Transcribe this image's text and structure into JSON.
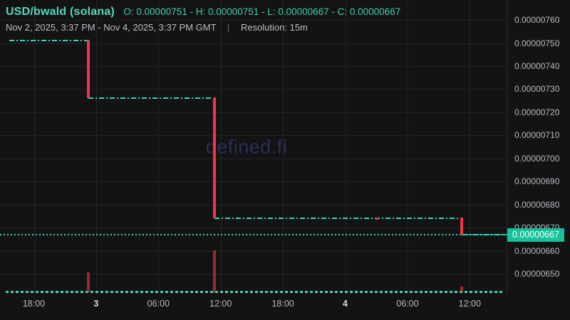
{
  "header": {
    "symbol": "USD/bwald (solana)",
    "ohlc": "O: 0.00000751 - H: 0.00000751 - L: 0.00000667 - C: 0.00000667",
    "date_range": "Nov 2, 2025, 3:37 PM - Nov 4, 2025, 3:37 PM GMT",
    "separator": "|",
    "resolution": "Resolution: 15m"
  },
  "watermark": "defined.fi",
  "current_price_label": "0.00000667",
  "colors": {
    "background": "#131314",
    "accent_teal": "#2dd9b7",
    "candle_red": "#f23645",
    "price_label_bg": "#16c19c",
    "title_teal": "#55d6bb",
    "grid": "#232327",
    "axis_text": "#b8bac0",
    "watermark": "#2b2e55"
  },
  "chart_data": {
    "type": "line",
    "style": "step-close-line-with-down-candles-and-volume",
    "title": "USD/bwald (solana)",
    "resolution": "15m",
    "timezone": "GMT",
    "x_range": [
      "2025-11-02T15:37:00Z",
      "2025-11-04T15:37:00Z"
    ],
    "legend_position": "none",
    "grid": "on",
    "y_axis": {
      "side": "right",
      "tick_labels": [
        "0.00000760",
        "0.00000750",
        "0.00000740",
        "0.00000730",
        "0.00000720",
        "0.00000710",
        "0.00000700",
        "0.00000690",
        "0.00000680",
        "0.00000670",
        "0.00000660",
        "0.00000650"
      ]
    },
    "x_axis": {
      "ticks": [
        {
          "label": "18:00",
          "t": "2025-11-02T18:00:00Z",
          "bold": false
        },
        {
          "label": "3",
          "t": "2025-11-03T00:00:00Z",
          "bold": true
        },
        {
          "label": "06:00",
          "t": "2025-11-03T06:00:00Z",
          "bold": false
        },
        {
          "label": "12:00",
          "t": "2025-11-03T12:00:00Z",
          "bold": false
        },
        {
          "label": "18:00",
          "t": "2025-11-03T18:00:00Z",
          "bold": false
        },
        {
          "label": "4",
          "t": "2025-11-04T00:00:00Z",
          "bold": true
        },
        {
          "label": "06:00",
          "t": "2025-11-04T06:00:00Z",
          "bold": false
        },
        {
          "label": "12:00",
          "t": "2025-11-04T12:00:00Z",
          "bold": false
        }
      ]
    },
    "steps": [
      {
        "start": "2025-11-02T15:37:00Z",
        "end": "2025-11-02T23:15:00Z",
        "price": 7.51e-06
      },
      {
        "start": "2025-11-02T23:15:00Z",
        "end": "2025-11-03T11:25:00Z",
        "price": 7.26e-06
      },
      {
        "start": "2025-11-03T11:25:00Z",
        "end": "2025-11-04T11:15:00Z",
        "price": 6.74e-06
      },
      {
        "start": "2025-11-04T11:15:00Z",
        "end": "2025-11-04T15:37:00Z",
        "price": 6.67e-06
      }
    ],
    "down_candles": [
      {
        "t": "2025-11-02T23:15:00Z",
        "open": 7.51e-06,
        "close": 7.26e-06
      },
      {
        "t": "2025-11-03T11:25:00Z",
        "open": 7.26e-06,
        "close": 6.74e-06
      },
      {
        "t": "2025-11-04T03:05:00Z",
        "open": 6.74e-06,
        "close": 6.74e-06
      },
      {
        "t": "2025-11-04T11:15:00Z",
        "open": 6.74e-06,
        "close": 6.67e-06
      }
    ],
    "current_price": 6.67e-06,
    "volume_bars_pct_of_max": [
      {
        "t": "2025-11-02T23:15:00Z",
        "pct": 48
      },
      {
        "t": "2025-11-03T11:25:00Z",
        "pct": 100
      },
      {
        "t": "2025-11-04T11:15:00Z",
        "pct": 14
      }
    ]
  }
}
